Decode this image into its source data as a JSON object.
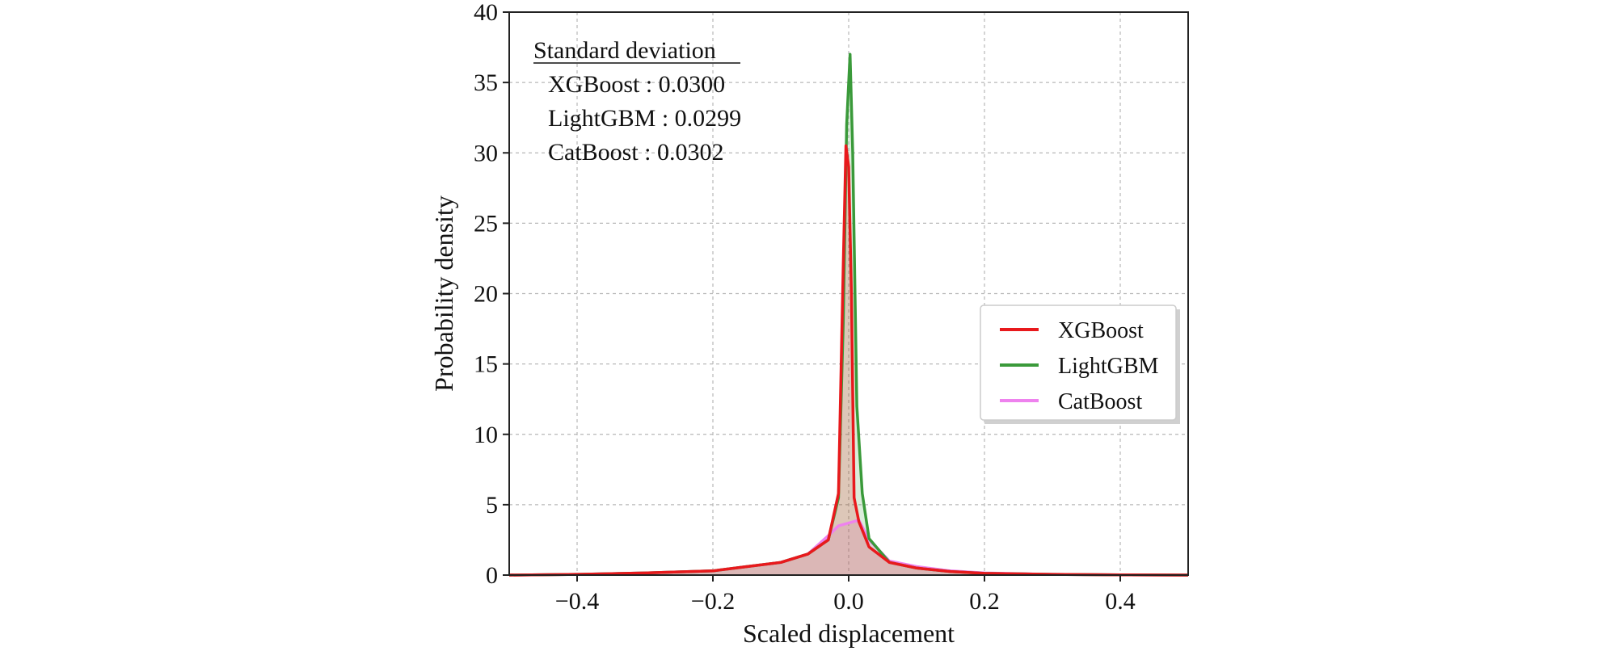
{
  "chart_data": {
    "type": "area",
    "xlabel": "Scaled displacement",
    "ylabel": "Probability density",
    "xlim": [
      -0.5,
      0.5
    ],
    "ylim": [
      0,
      40
    ],
    "xticks": [
      -0.4,
      -0.2,
      0.0,
      0.2,
      0.4
    ],
    "xtick_labels": [
      "−0.4",
      "−0.2",
      "0.0",
      "0.2",
      "0.4"
    ],
    "yticks": [
      0,
      5,
      10,
      15,
      20,
      25,
      30,
      35,
      40
    ],
    "ytick_labels": [
      "0",
      "5",
      "10",
      "15",
      "20",
      "25",
      "30",
      "35",
      "40"
    ],
    "grid": true,
    "legend_position": "center-right",
    "annotation": {
      "title": "Standard deviation",
      "lines": [
        "XGBoost : 0.0300",
        "LightGBM : 0.0299",
        "CatBoost : 0.0302"
      ]
    },
    "series": [
      {
        "name": "XGBoost",
        "color": "#e8191c",
        "x": [
          -0.5,
          -0.4,
          -0.3,
          -0.2,
          -0.15,
          -0.1,
          -0.06,
          -0.03,
          -0.015,
          -0.008,
          -0.004,
          0.0,
          0.004,
          0.008,
          0.015,
          0.03,
          0.06,
          0.1,
          0.15,
          0.2,
          0.3,
          0.4,
          0.5
        ],
        "values": [
          0.0,
          0.05,
          0.15,
          0.3,
          0.6,
          0.9,
          1.5,
          2.5,
          5.8,
          22,
          30.5,
          29,
          20,
          5.5,
          3.8,
          2.0,
          0.9,
          0.5,
          0.25,
          0.12,
          0.05,
          0.02,
          0.0
        ]
      },
      {
        "name": "LightGBM",
        "color": "#3a9a3a",
        "x": [
          -0.5,
          -0.4,
          -0.3,
          -0.2,
          -0.15,
          -0.1,
          -0.06,
          -0.03,
          -0.015,
          -0.008,
          -0.003,
          0.002,
          0.006,
          0.012,
          0.02,
          0.03,
          0.06,
          0.1,
          0.15,
          0.2,
          0.3,
          0.4,
          0.5
        ],
        "values": [
          0.0,
          0.05,
          0.15,
          0.3,
          0.6,
          0.9,
          1.5,
          2.5,
          5.5,
          18,
          32,
          37,
          30,
          12,
          5.8,
          2.6,
          0.9,
          0.5,
          0.25,
          0.12,
          0.05,
          0.02,
          0.0
        ]
      },
      {
        "name": "CatBoost",
        "color": "#ee82ee",
        "x": [
          -0.5,
          -0.4,
          -0.3,
          -0.2,
          -0.15,
          -0.1,
          -0.06,
          -0.03,
          -0.015,
          0.0,
          0.015,
          0.03,
          0.06,
          0.1,
          0.15,
          0.2,
          0.3,
          0.4,
          0.5
        ],
        "values": [
          0.0,
          0.05,
          0.15,
          0.3,
          0.6,
          0.9,
          1.5,
          2.8,
          3.5,
          3.7,
          3.9,
          2.5,
          1.0,
          0.6,
          0.3,
          0.15,
          0.05,
          0.02,
          0.0
        ]
      }
    ]
  }
}
